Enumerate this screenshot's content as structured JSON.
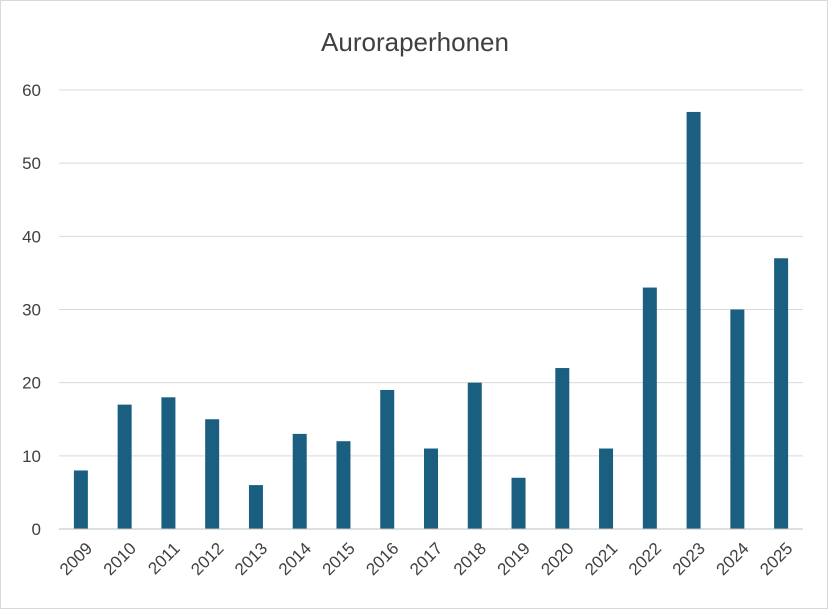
{
  "chart_data": {
    "type": "bar",
    "title": "Auroraperhonen",
    "xlabel": "",
    "ylabel": "",
    "categories": [
      "2009",
      "2010",
      "2011",
      "2012",
      "2013",
      "2014",
      "2015",
      "2016",
      "2017",
      "2018",
      "2019",
      "2020",
      "2021",
      "2022",
      "2023",
      "2024",
      "2025"
    ],
    "values": [
      8,
      17,
      18,
      15,
      6,
      13,
      12,
      19,
      11,
      20,
      7,
      22,
      11,
      33,
      57,
      30,
      37
    ],
    "ylim": [
      0,
      60
    ],
    "yticks": [
      0,
      10,
      20,
      30,
      40,
      50,
      60
    ],
    "grid": true,
    "legend": "none",
    "bar_color": "#1b5f80"
  }
}
